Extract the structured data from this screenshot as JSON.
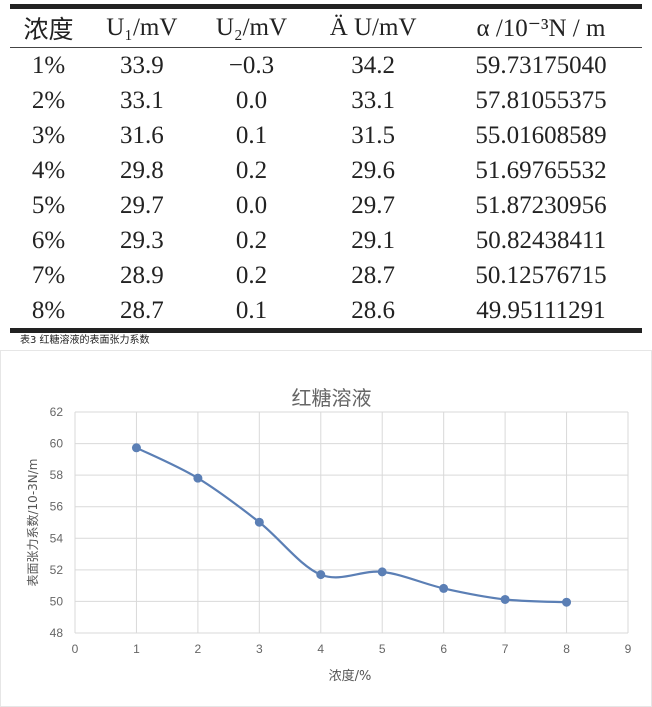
{
  "table": {
    "headers": [
      "浓度",
      "U₁/mV",
      "U₂/mV",
      "Ä U/mV",
      "α /10⁻³N / m"
    ],
    "rows": [
      [
        "1%",
        "33.9",
        "−0.3",
        "34.2",
        "59.73175040"
      ],
      [
        "2%",
        "33.1",
        "0.0",
        "33.1",
        "57.81055375"
      ],
      [
        "3%",
        "31.6",
        "0.1",
        "31.5",
        "55.01608589"
      ],
      [
        "4%",
        "29.8",
        "0.2",
        "29.6",
        "51.69765532"
      ],
      [
        "5%",
        "29.7",
        "0.0",
        "29.7",
        "51.87230956"
      ],
      [
        "6%",
        "29.3",
        "0.2",
        "29.1",
        "50.82438411"
      ],
      [
        "7%",
        "28.9",
        "0.2",
        "28.7",
        "50.12576715"
      ],
      [
        "8%",
        "28.7",
        "0.1",
        "28.6",
        "49.95111291"
      ]
    ]
  },
  "caption": "表3 红糖溶液的表面张力系数",
  "chart_data": {
    "type": "line",
    "title": "红糖溶液",
    "xlabel": "浓度/%",
    "ylabel": "表面张力系数/10-3N/m",
    "xlim": [
      0,
      9
    ],
    "ylim": [
      48,
      62
    ],
    "xticks": [
      "0",
      "1",
      "2",
      "3",
      "4",
      "5",
      "6",
      "7",
      "8",
      "9"
    ],
    "yticks": [
      "48",
      "50",
      "52",
      "54",
      "56",
      "58",
      "60",
      "62"
    ],
    "grid": true,
    "x": [
      1,
      2,
      3,
      4,
      5,
      6,
      7,
      8
    ],
    "y": [
      59.7317504,
      57.81055375,
      55.01608589,
      51.69765532,
      51.87230956,
      50.82438411,
      50.12576715,
      49.95111291
    ],
    "color": "#5b7fb5"
  }
}
